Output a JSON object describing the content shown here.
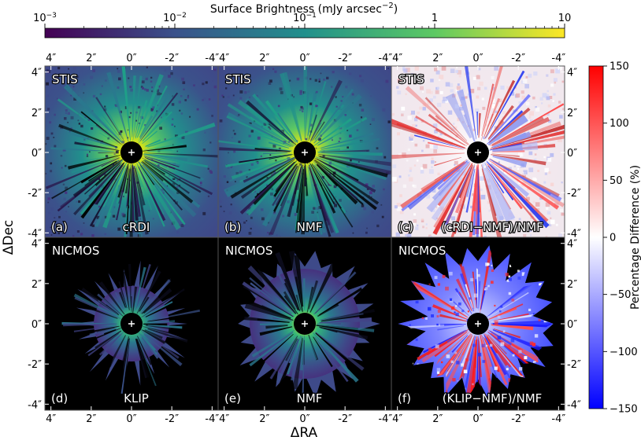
{
  "figure": {
    "xlabel": "ΔRA",
    "ylabel": "ΔDec"
  },
  "colorbar_top": {
    "label": "Surface Brightness (mJy arcsec",
    "label_sup": "−2",
    "label_end": ")",
    "scale": "log",
    "range": [
      0.001,
      10
    ],
    "colormap": "viridis",
    "colors": [
      "#440154",
      "#3b528b",
      "#21908c",
      "#5dc963",
      "#fde725"
    ],
    "ticks": [
      {
        "value": 0.001,
        "base": "10",
        "exp": "−3"
      },
      {
        "value": 0.01,
        "base": "10",
        "exp": "−2"
      },
      {
        "value": 0.1,
        "base": "10",
        "exp": "−1"
      },
      {
        "value": 1,
        "base": "1",
        "exp": ""
      },
      {
        "value": 10,
        "base": "10",
        "exp": ""
      }
    ]
  },
  "colorbar_right": {
    "label": "Percentage Difference (%)",
    "range": [
      -150,
      150
    ],
    "colormap": "bwr",
    "colors": [
      "#0000ff",
      "#ffffff",
      "#ff0000"
    ],
    "ticks": [
      150,
      100,
      50,
      0,
      -50,
      -100,
      -150
    ],
    "tick_labels": [
      "150",
      "100",
      "50",
      "0",
      "−50",
      "−100",
      "−150"
    ]
  },
  "axis_ticks": {
    "x_top": [
      "4″",
      "2″",
      "0″",
      "-2″",
      "-4″"
    ],
    "x_bottom": [
      "4″",
      "2″",
      "0″",
      "-2″",
      "-4″"
    ],
    "y": [
      "4″",
      "2″",
      "0″",
      "-2″",
      "-4″"
    ],
    "values": [
      4,
      2,
      0,
      -2,
      -4
    ],
    "range": [
      4.3,
      -4.3
    ]
  },
  "chart_data": {
    "type": "heatmap",
    "panels": [
      {
        "id": "a",
        "instrument": "STIS",
        "method": "cRDI",
        "tag": "(a)",
        "kind": "brightness"
      },
      {
        "id": "b",
        "instrument": "STIS",
        "method": "NMF",
        "tag": "(b)",
        "kind": "brightness"
      },
      {
        "id": "c",
        "instrument": "STIS",
        "method": "(cRDI−NMF)/NMF",
        "tag": "(c)",
        "kind": "difference"
      },
      {
        "id": "d",
        "instrument": "NICMOS",
        "method": "KLIP",
        "tag": "(d)",
        "kind": "brightness"
      },
      {
        "id": "e",
        "instrument": "NICMOS",
        "method": "NMF",
        "tag": "(e)",
        "kind": "brightness"
      },
      {
        "id": "f",
        "instrument": "NICMOS",
        "method": "(KLIP−NMF)/NMF",
        "tag": "(f)",
        "kind": "difference"
      }
    ]
  }
}
